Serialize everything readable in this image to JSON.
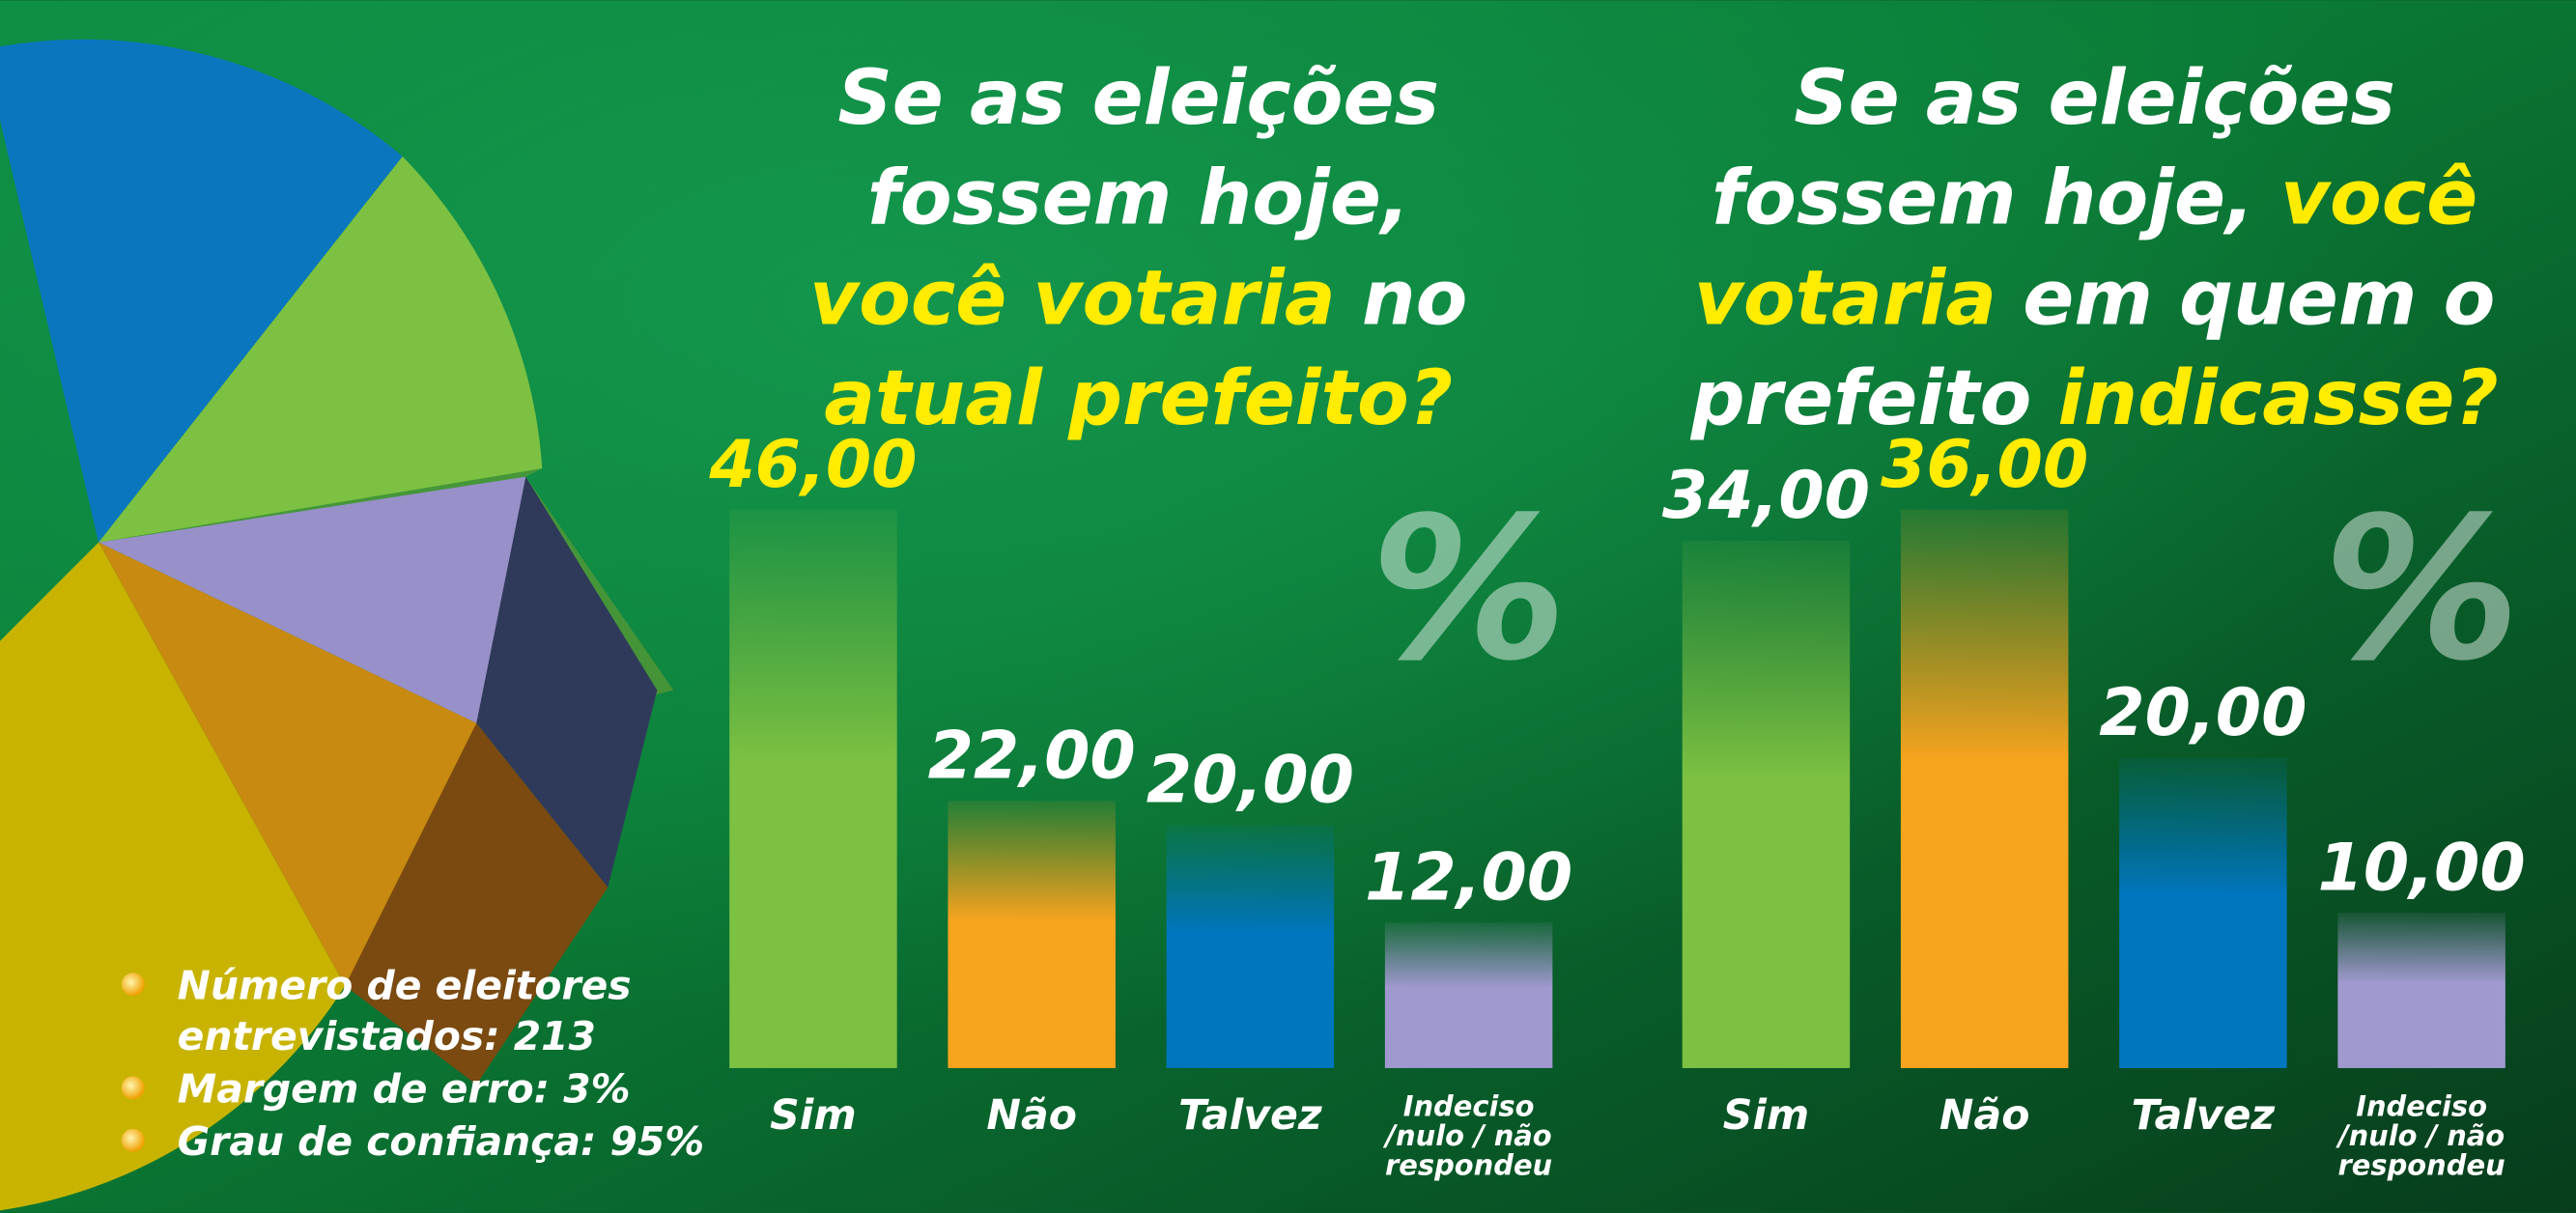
{
  "chart_data": [
    {
      "type": "bar",
      "title_lines": [
        [
          {
            "text": "Se as eleições",
            "color": "#ffffff"
          }
        ],
        [
          {
            "text": "fossem hoje,",
            "color": "#ffffff"
          }
        ],
        [
          {
            "text": "você votaria",
            "color": "#ffec00"
          },
          {
            "text": " no",
            "color": "#ffffff"
          }
        ],
        [
          {
            "text": "atual prefeito?",
            "color": "#ffec00"
          }
        ]
      ],
      "annotation": "%",
      "categories": [
        "Sim",
        "Não",
        "Talvez",
        "Indeciso /nulo / não respondeu"
      ],
      "values": [
        46,
        22,
        20,
        12
      ],
      "value_labels": [
        "46,00",
        "22,00",
        "20,00",
        "12,00"
      ],
      "colors": [
        "#7cc142",
        "#f7a41e",
        "#0076bf",
        "#a099cf"
      ],
      "ylim": [
        0,
        46
      ]
    },
    {
      "type": "bar",
      "title_lines": [
        [
          {
            "text": "Se as eleições",
            "color": "#ffffff"
          }
        ],
        [
          {
            "text": "fossem hoje, ",
            "color": "#ffffff"
          },
          {
            "text": "você",
            "color": "#ffec00"
          }
        ],
        [
          {
            "text": "votaria",
            "color": "#ffec00"
          },
          {
            "text": " em quem o",
            "color": "#ffffff"
          }
        ],
        [
          {
            "text": "prefeito ",
            "color": "#ffffff"
          },
          {
            "text": "indicasse?",
            "color": "#ffec00"
          }
        ]
      ],
      "annotation": "%",
      "categories": [
        "Sim",
        "Não",
        "Talvez",
        "Indeciso /nulo / não respondeu"
      ],
      "values": [
        34,
        36,
        20,
        10
      ],
      "value_labels": [
        "34,00",
        "36,00",
        "20,00",
        "10,00"
      ],
      "colors": [
        "#7cc142",
        "#f7a41e",
        "#0076bf",
        "#a099cf"
      ],
      "ylim": [
        0,
        36
      ]
    }
  ],
  "notes": [
    [
      "Número de eleitores",
      "entrevistados: 213"
    ],
    [
      "Margem de erro: 3%"
    ],
    [
      "Grau de confiança: 95%"
    ]
  ]
}
